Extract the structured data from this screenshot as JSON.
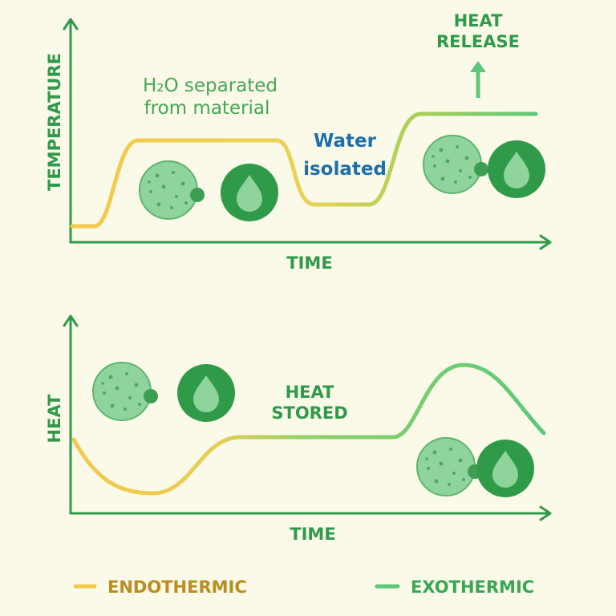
{
  "top_panel": {
    "y_axis_label": "TEMPERATURE",
    "x_axis_label": "TIME",
    "note_lines": [
      "H₂O separated",
      "from material"
    ],
    "water_lines": [
      "Water",
      "isolated"
    ],
    "release_lines": [
      "HEAT",
      "RELEASE"
    ]
  },
  "bottom_panel": {
    "y_axis_label": "HEAT",
    "x_axis_label": "TIME",
    "stored_lines": [
      "HEAT",
      "STORED"
    ]
  },
  "legend": {
    "items": [
      "ENDOTHERMIC",
      "EXOTHERMIC"
    ]
  }
}
